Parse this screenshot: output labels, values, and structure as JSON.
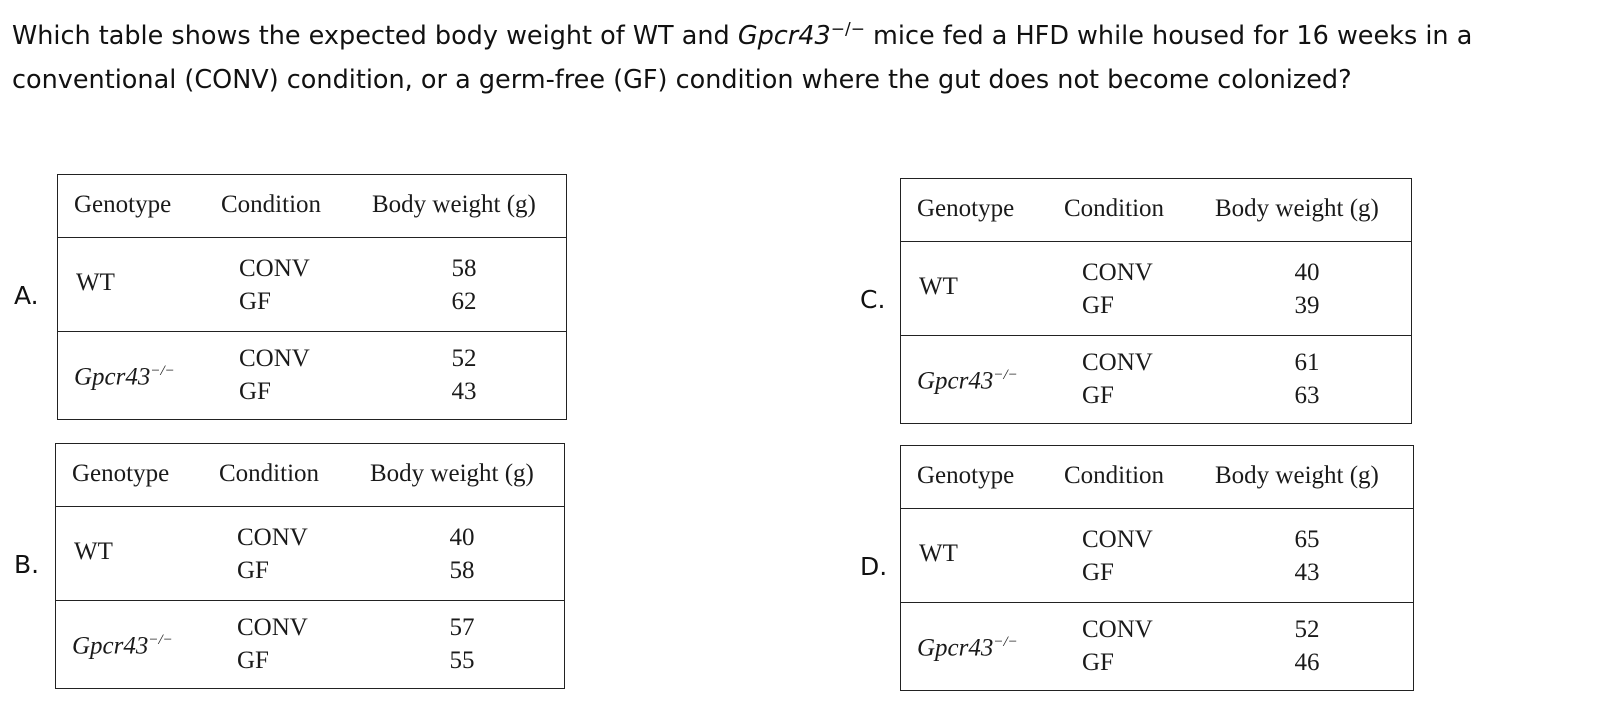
{
  "question": {
    "part1": "Which table shows the expected body weight of WT and ",
    "gene": "Gpcr43",
    "superscript": "−/−",
    "part2": " mice fed a HFD while housed for 16 weeks in a conventional (CONV) condition, or a germ-free (GF) condition where the gut does not become colonized?"
  },
  "headers": {
    "genotype": "Genotype",
    "condition": "Condition",
    "body_weight": "Body weight (g)"
  },
  "genotypes": {
    "wt": "WT",
    "ko": "Gpcr43",
    "ko_sup": "−/−"
  },
  "conditions": {
    "conv": "CONV",
    "gf": "GF"
  },
  "options": {
    "A": {
      "label": "A.",
      "wt_conv": "58",
      "wt_gf": "62",
      "ko_conv": "52",
      "ko_gf": "43"
    },
    "B": {
      "label": "B.",
      "wt_conv": "40",
      "wt_gf": "58",
      "ko_conv": "57",
      "ko_gf": "55"
    },
    "C": {
      "label": "C.",
      "wt_conv": "40",
      "wt_gf": "39",
      "ko_conv": "61",
      "ko_gf": "63"
    },
    "D": {
      "label": "D.",
      "wt_conv": "65",
      "wt_gf": "43",
      "ko_conv": "52",
      "ko_gf": "46"
    }
  }
}
